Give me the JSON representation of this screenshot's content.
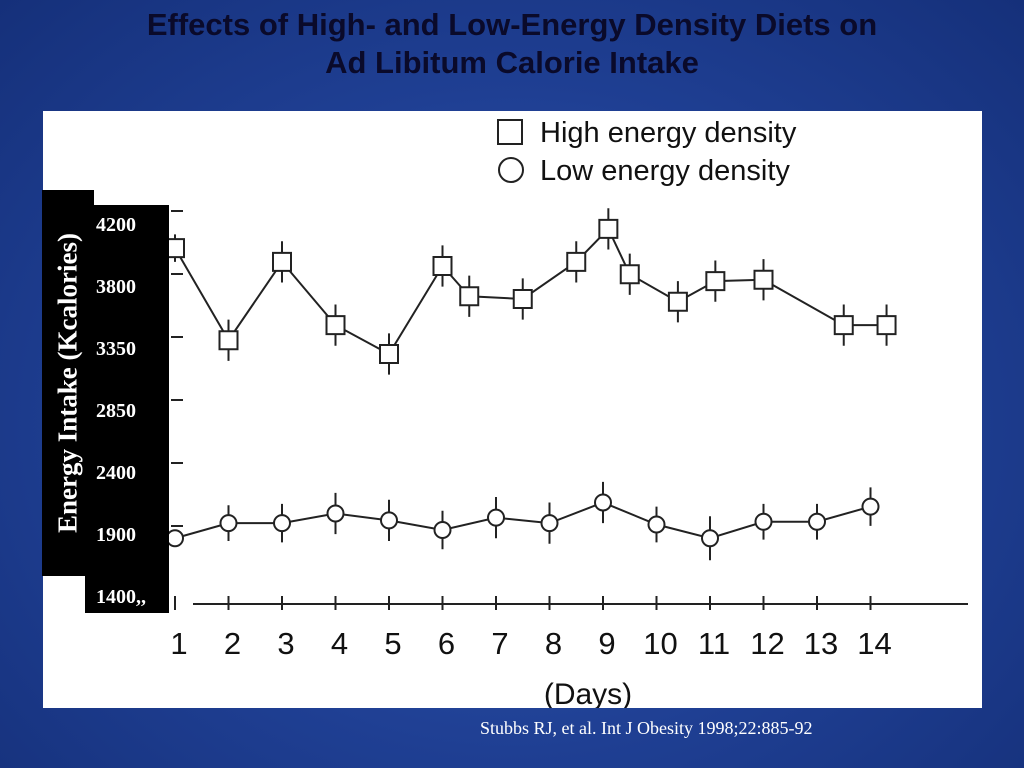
{
  "slide": {
    "title_line1": "Effects of High- and Low-Energy Density Diets on",
    "title_line2": "Ad Libitum Calorie Intake",
    "citation": "Stubbs RJ, et al. Int J Obesity 1998;22:885-92"
  },
  "colors": {
    "background": "#1f3f93",
    "title": "#0a0a2a",
    "label_box": "#000000",
    "label_text": "#ffffff",
    "plot_line": "#222222"
  },
  "chart_data": {
    "type": "line",
    "title": "",
    "xlabel": "(Days)",
    "ylabel": "Energy Intake (Kcalories)",
    "ytick_labels": [
      "4200",
      "3800",
      "3350",
      "2850",
      "2400",
      "1900",
      "1400,,"
    ],
    "xtick_labels": [
      "1",
      "2",
      "3",
      "4",
      "5",
      "6",
      "7",
      "8",
      "9",
      "10",
      "11",
      "12",
      "13",
      "14"
    ],
    "ylim": [
      1400,
      4200
    ],
    "legend": {
      "placement": "top-right",
      "entries": [
        {
          "label": "High energy density",
          "marker": "square"
        },
        {
          "label": "Low energy density",
          "marker": "circle"
        }
      ]
    },
    "series": [
      {
        "name": "High energy density",
        "marker": "square",
        "x": [
          1,
          2,
          3,
          4,
          5,
          6,
          6.5,
          7.5,
          8.5,
          9.1,
          9.5,
          10.4,
          11.1,
          12,
          13.5,
          14.3
        ],
        "y": [
          3930,
          3260,
          3830,
          3370,
          3160,
          3800,
          3580,
          3560,
          3830,
          4070,
          3740,
          3540,
          3690,
          3700,
          3370,
          3370
        ],
        "error": [
          100,
          150,
          150,
          150,
          150,
          150,
          150,
          150,
          150,
          150,
          150,
          150,
          150,
          150,
          150,
          150
        ]
      },
      {
        "name": "Low energy density",
        "marker": "circle",
        "x": [
          1,
          2,
          3,
          4,
          5,
          6,
          7,
          8,
          9,
          10,
          11,
          12,
          13,
          14
        ],
        "y": [
          1820,
          1930,
          1930,
          2000,
          1950,
          1880,
          1970,
          1930,
          2080,
          1920,
          1820,
          1940,
          1940,
          2050
        ],
        "error": [
          0,
          130,
          140,
          150,
          150,
          140,
          150,
          150,
          150,
          130,
          160,
          130,
          130,
          140
        ]
      }
    ]
  }
}
